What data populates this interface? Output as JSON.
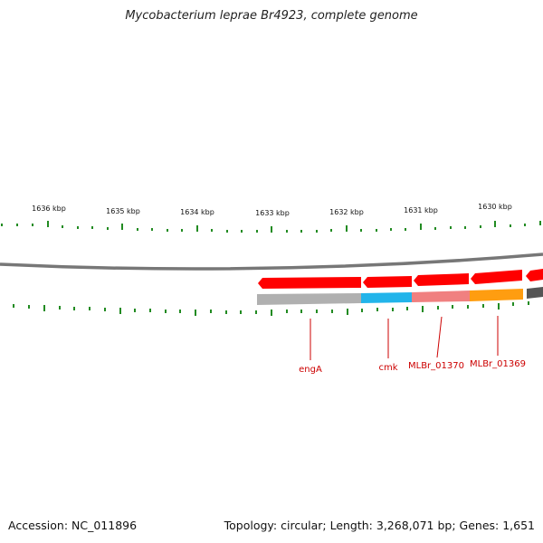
{
  "title": "Mycobacterium leprae Br4923, complete genome",
  "footer": {
    "accession": "Accession: NC_011896",
    "summary": "Topology: circular; Length: 3,268,071 bp; Genes: 1,651"
  },
  "ruler": {
    "labels": [
      "1636 kbp",
      "1635 kbp",
      "1634 kbp",
      "1633 kbp",
      "1632 kbp",
      "1631 kbp",
      "1630 kbp"
    ],
    "color": "#228b22"
  },
  "colors": {
    "backbone": "#777777",
    "gene_forward": "#ff0000",
    "gene_label": "#cc0000",
    "cds_bar_grey": "#b0b0b0",
    "cds_bar_cyan": "#22b4ea",
    "cds_bar_pink": "#f08080",
    "cds_bar_orange": "#ff9d10",
    "cds_bar_dark": "#555555"
  },
  "genes": [
    {
      "label": "engA"
    },
    {
      "label": "cmk"
    },
    {
      "label": "MLBr_01370"
    },
    {
      "label": "MLBr_01369"
    }
  ]
}
